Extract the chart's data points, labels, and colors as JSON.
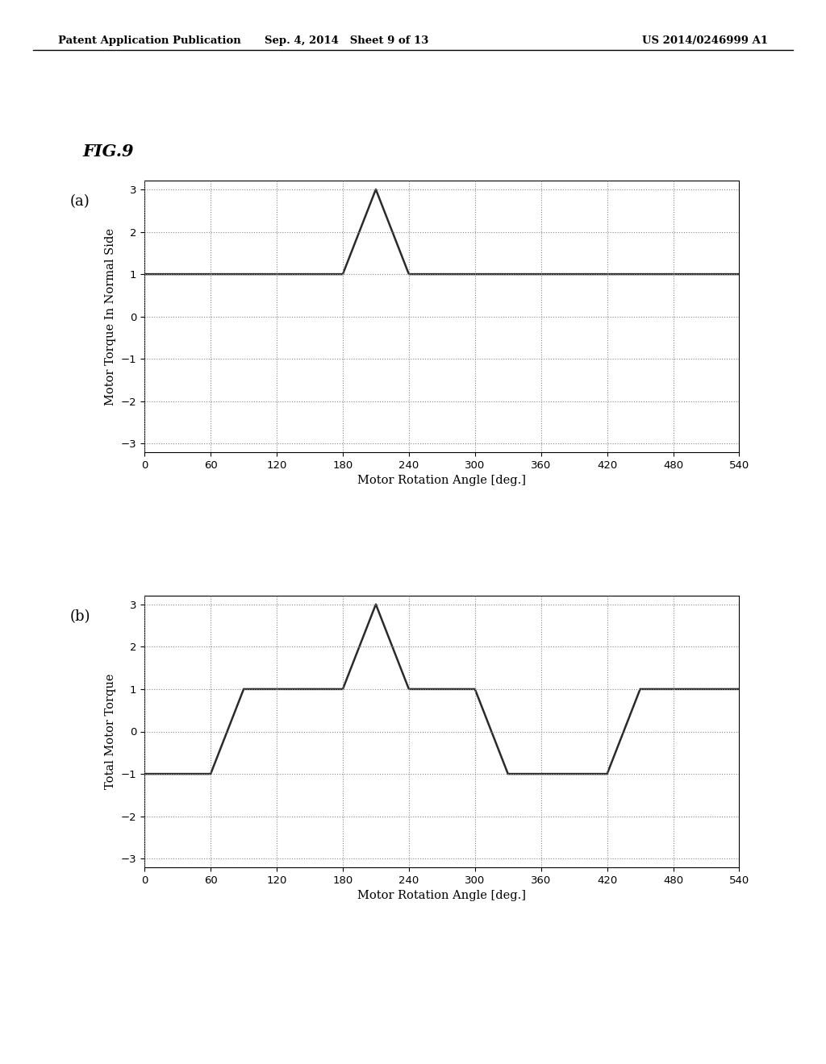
{
  "header_left": "Patent Application Publication",
  "header_center": "Sep. 4, 2014   Sheet 9 of 13",
  "header_right": "US 2014/0246999 A1",
  "fig_label": "FIG.9",
  "panel_a_label": "(a)",
  "panel_b_label": "(b)",
  "panel_a": {
    "x": [
      0,
      180,
      210,
      240,
      540
    ],
    "y": [
      1,
      1,
      3,
      1,
      1
    ],
    "xlabel": "Motor Rotation Angle [deg.]",
    "ylabel": "Motor Torque In Normal Side",
    "xlim": [
      0,
      540
    ],
    "ylim": [
      -3.2,
      3.2
    ],
    "xticks": [
      0,
      60,
      120,
      180,
      240,
      300,
      360,
      420,
      480,
      540
    ],
    "yticks": [
      -3,
      -2,
      -1,
      0,
      1,
      2,
      3
    ]
  },
  "panel_b": {
    "x": [
      0,
      60,
      90,
      120,
      180,
      210,
      240,
      300,
      330,
      360,
      420,
      450,
      480,
      540
    ],
    "y": [
      -1,
      -1,
      1,
      1,
      1,
      3,
      1,
      1,
      -1,
      -1,
      -1,
      1,
      1,
      1
    ],
    "xlabel": "Motor Rotation Angle [deg.]",
    "ylabel": "Total Motor Torque",
    "xlim": [
      0,
      540
    ],
    "ylim": [
      -3.2,
      3.2
    ],
    "xticks": [
      0,
      60,
      120,
      180,
      240,
      300,
      360,
      420,
      480,
      540
    ],
    "yticks": [
      -3,
      -2,
      -1,
      0,
      1,
      2,
      3
    ]
  },
  "line_color": "#2a2a2a",
  "line_width": 1.8,
  "grid_color": "#888888",
  "grid_style": "dotted",
  "background_color": "#ffffff",
  "header_fontsize": 9.5,
  "fig_label_fontsize": 15,
  "panel_label_fontsize": 13,
  "axis_label_fontsize": 10.5,
  "tick_fontsize": 9.5
}
